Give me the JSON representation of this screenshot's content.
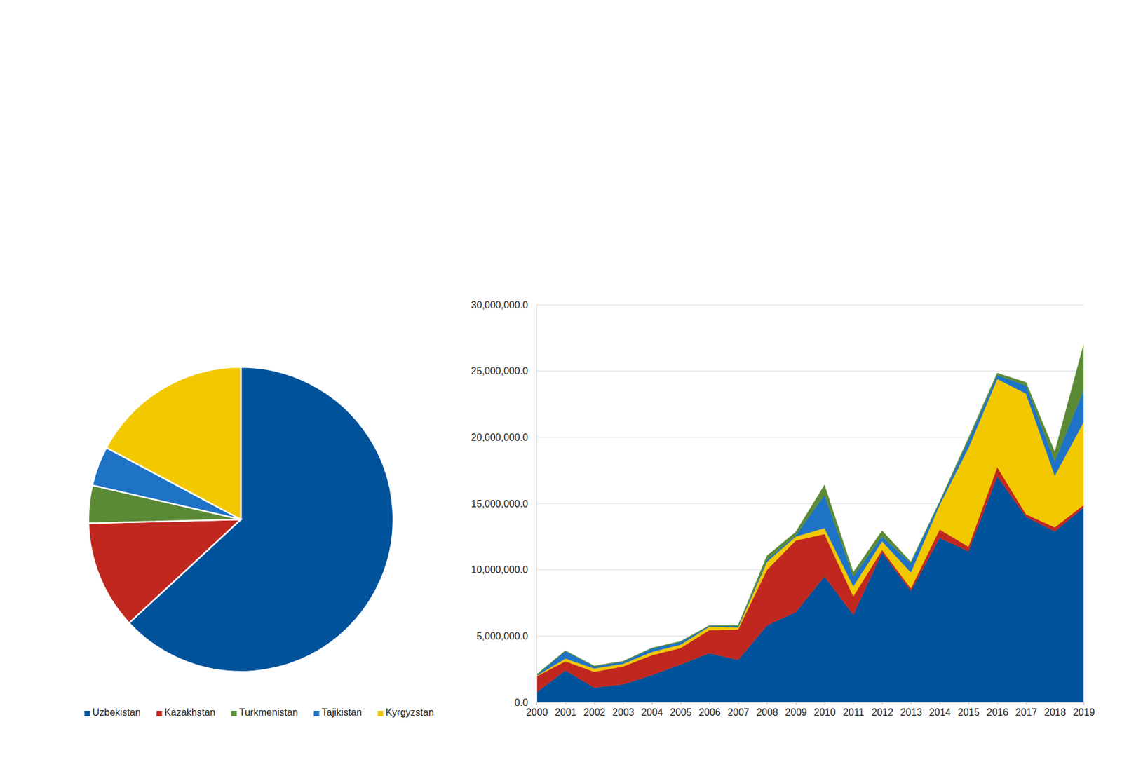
{
  "chart_data": [
    {
      "type": "pie",
      "categories": [
        "Uzbekistan",
        "Kazakhstan",
        "Turkmenistan",
        "Tajikistan",
        "Kyrgyzstan"
      ],
      "values": [
        63.1,
        11.5,
        4.0,
        4.2,
        17.2
      ],
      "colors": [
        "#00529b",
        "#c0281f",
        "#5b8a36",
        "#1e73c6",
        "#f2c800"
      ],
      "legend": "bottom"
    },
    {
      "type": "area",
      "stacked": true,
      "grid": true,
      "x": [
        2000,
        2001,
        2002,
        2003,
        2004,
        2005,
        2006,
        2007,
        2008,
        2009,
        2010,
        2011,
        2012,
        2013,
        2014,
        2015,
        2016,
        2017,
        2018,
        2019
      ],
      "xlim": [
        2000,
        2019
      ],
      "xticks": [
        2000,
        2001,
        2002,
        2003,
        2004,
        2005,
        2006,
        2007,
        2008,
        2009,
        2010,
        2011,
        2012,
        2013,
        2014,
        2015,
        2016,
        2017,
        2018,
        2019
      ],
      "ylim": [
        0,
        30000000
      ],
      "yticks": [
        {
          "value": 0,
          "label": "0.0"
        },
        {
          "value": 5000000,
          "label": "5,000,000.0"
        },
        {
          "value": 10000000,
          "label": "10,000,000.0"
        },
        {
          "value": 15000000,
          "label": "15,000,000.0"
        },
        {
          "value": 20000000,
          "label": "20,000,000.0"
        },
        {
          "value": 25000000,
          "label": "25,000,000.0"
        },
        {
          "value": 30000000,
          "label": "30,000,000.0"
        }
      ],
      "series": [
        {
          "name": "Uzbekistan",
          "color": "#00529b",
          "values": [
            750000,
            2400000,
            1100000,
            1350000,
            2050000,
            2850000,
            3700000,
            3200000,
            5800000,
            6800000,
            9500000,
            6600000,
            11300000,
            8400000,
            12400000,
            11400000,
            17050000,
            14000000,
            12900000,
            14700000
          ]
        },
        {
          "name": "Kazakhstan",
          "color": "#c0281f",
          "values": [
            1200000,
            700000,
            1200000,
            1350000,
            1500000,
            1250000,
            1750000,
            2300000,
            4200000,
            5400000,
            3200000,
            1400000,
            200000,
            200000,
            650000,
            350000,
            700000,
            200000,
            300000,
            200000
          ]
        },
        {
          "name": "Kyrgyzstan",
          "color": "#f2c800",
          "values": [
            50000,
            200000,
            250000,
            200000,
            250000,
            250000,
            250000,
            150000,
            600000,
            300000,
            450000,
            750000,
            650000,
            1200000,
            1850000,
            7450000,
            6650000,
            9100000,
            3900000,
            6250000
          ]
        },
        {
          "name": "Tajikistan",
          "color": "#1e73c6",
          "values": [
            50000,
            550000,
            150000,
            150000,
            250000,
            200000,
            50000,
            100000,
            150000,
            100000,
            2500000,
            750000,
            350000,
            700000,
            200000,
            550000,
            300000,
            600000,
            1100000,
            2400000
          ]
        },
        {
          "name": "Turkmenistan",
          "color": "#5b8a36",
          "values": [
            50000,
            50000,
            50000,
            50000,
            50000,
            50000,
            50000,
            50000,
            300000,
            250000,
            750000,
            300000,
            450000,
            100000,
            50000,
            200000,
            150000,
            250000,
            700000,
            3450000
          ]
        }
      ]
    }
  ]
}
